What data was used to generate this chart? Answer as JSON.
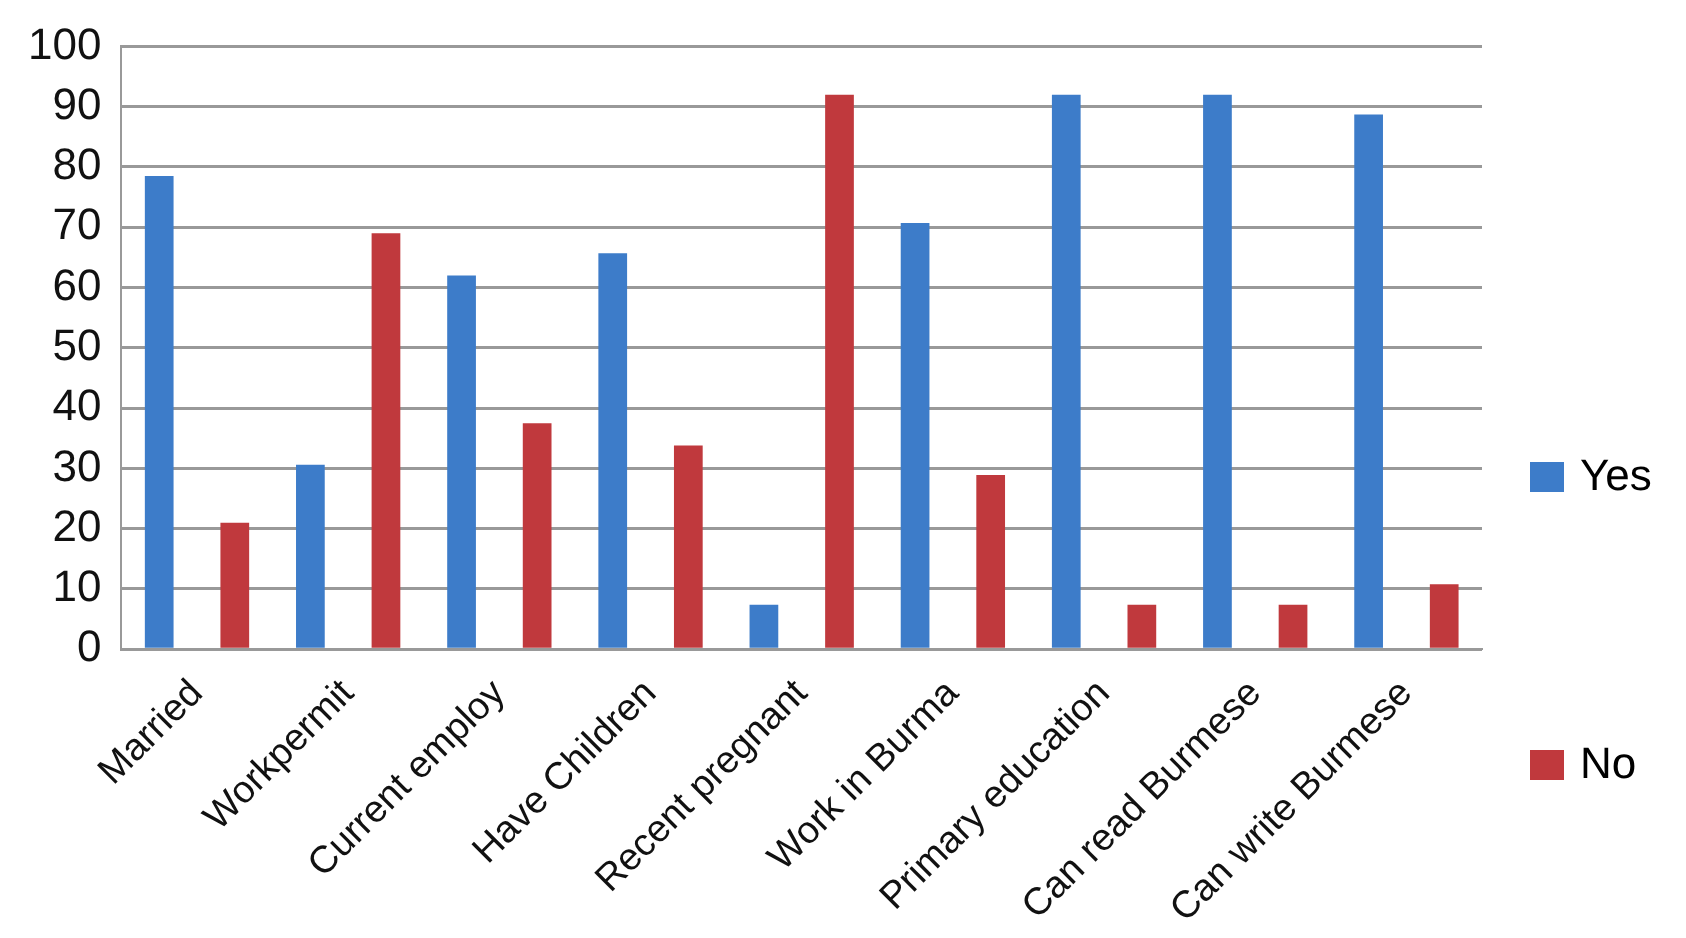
{
  "chart_data": {
    "type": "bar",
    "categories": [
      "Married",
      "Workpermit",
      "Current employ",
      "Have Children",
      "Recent pregnant",
      "Work in Burma",
      "Primary education",
      "Can read Burmese",
      "Can write Burmese"
    ],
    "series": [
      {
        "name": "Yes",
        "color": "#3d7cc9",
        "values": [
          78.5,
          30.6,
          62,
          65.7,
          7.4,
          70.7,
          92,
          92,
          88.7
        ]
      },
      {
        "name": "No",
        "color": "#c0393d",
        "values": [
          21,
          69,
          37.5,
          33.8,
          92,
          28.9,
          7.4,
          7.4,
          10.8
        ]
      }
    ],
    "ylim": [
      0,
      100
    ],
    "yticks": [
      0,
      10,
      20,
      30,
      40,
      50,
      60,
      70,
      80,
      90,
      100
    ],
    "grid": "y",
    "legend": "right"
  }
}
